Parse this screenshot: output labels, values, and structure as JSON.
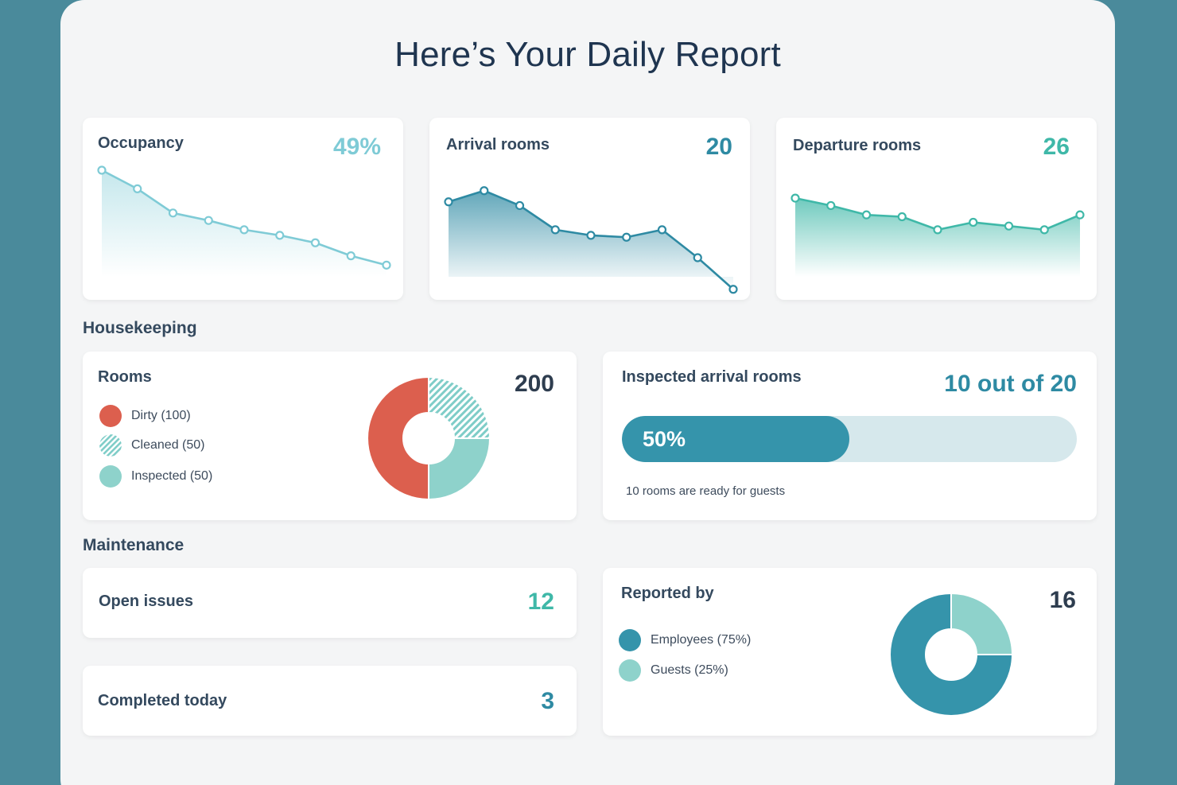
{
  "title": "Here’s Your Daily Report",
  "colors": {
    "occupancy": "#7fcbd6",
    "arrival": "#2e8aa3",
    "departure": "#3fb8a8",
    "dirty": "#dc5f4e",
    "cleaned": "#7fcdc8",
    "inspected": "#8ed2cb",
    "employees": "#3594ab",
    "guests": "#8ed2cb"
  },
  "occupancy": {
    "label": "Occupancy",
    "value": "49%"
  },
  "arrival": {
    "label": "Arrival rooms",
    "value": "20"
  },
  "departure": {
    "label": "Departure rooms",
    "value": "26"
  },
  "chart_data": [
    {
      "type": "area",
      "name": "occupancy",
      "values": [
        100,
        90,
        77,
        73,
        68,
        65,
        61,
        54,
        49
      ]
    },
    {
      "type": "area",
      "name": "arrival",
      "values": [
        83,
        89,
        81,
        68,
        65,
        64,
        68,
        53,
        36
      ]
    },
    {
      "type": "area",
      "name": "departure",
      "values": [
        85,
        81,
        76,
        75,
        68,
        72,
        70,
        68,
        76
      ]
    },
    {
      "type": "pie",
      "name": "rooms",
      "categories": [
        "Dirty",
        "Cleaned",
        "Inspected"
      ],
      "values": [
        100,
        50,
        50
      ]
    },
    {
      "type": "pie",
      "name": "reported",
      "categories": [
        "Employees",
        "Guests"
      ],
      "values": [
        75,
        25
      ]
    }
  ],
  "housekeeping": {
    "section_label": "Housekeeping",
    "rooms": {
      "label": "Rooms",
      "total": "200",
      "legend": [
        {
          "label": "Dirty (100)"
        },
        {
          "label": "Cleaned (50)"
        },
        {
          "label": "Inspected (50)"
        }
      ]
    },
    "inspected": {
      "label": "Inspected arrival rooms",
      "value": "10 out of 20",
      "progress_text": "50%",
      "progress": 0.5,
      "note": "10 rooms are ready for guests"
    }
  },
  "maintenance": {
    "section_label": "Maintenance",
    "open_issues": {
      "label": "Open issues",
      "value": "12"
    },
    "completed": {
      "label": "Completed today",
      "value": "3"
    },
    "reported": {
      "label": "Reported by",
      "total": "16",
      "legend": [
        {
          "label": "Employees (75%)"
        },
        {
          "label": "Guests (25%)"
        }
      ]
    }
  }
}
